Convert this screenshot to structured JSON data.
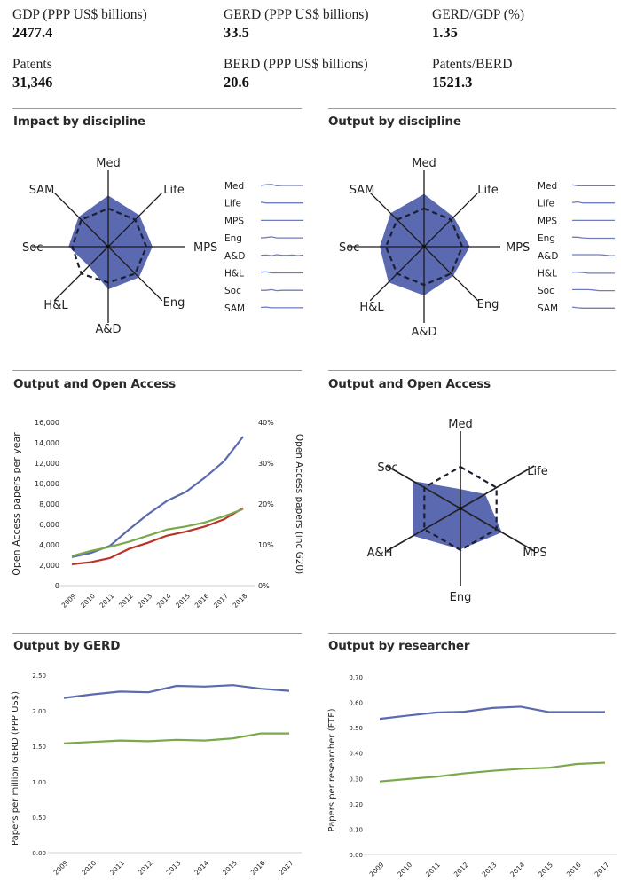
{
  "stats": [
    {
      "label": "GDP (PPP US$ billions)",
      "value": "2477.4"
    },
    {
      "label": "GERD (PPP US$ billions)",
      "value": "33.5"
    },
    {
      "label": "GERD/GDP (%)",
      "value": "1.35"
    },
    {
      "label": "Patents",
      "value": "31,346"
    },
    {
      "label": "BERD (PPP US$ billions)",
      "value": "20.6"
    },
    {
      "label": "Patents/BERD",
      "value": "1521.3"
    }
  ],
  "sections": {
    "impact": "Impact by discipline",
    "output": "Output by discipline",
    "oa_line": "Output and Open Access",
    "oa_radar": "Output and Open Access",
    "gerd": "Output by GERD",
    "researcher": "Output by researcher"
  },
  "colors": {
    "fill": "#5a69b0",
    "blue": "#5b6aae",
    "green": "#7aa84a",
    "red": "#b8332a",
    "axis": "#1a1a1a",
    "spark": "#6f7dbd"
  },
  "chart_data": [
    {
      "id": "impact",
      "type": "radar",
      "title": "Impact by discipline",
      "axes": [
        "Med",
        "Life",
        "MPS",
        "Eng",
        "A&D",
        "H&L",
        "Soc",
        "SAM"
      ],
      "series": [
        {
          "name": "country",
          "style": "filled",
          "values": [
            0.67,
            0.58,
            0.58,
            0.57,
            0.56,
            0.36,
            0.52,
            0.55
          ]
        },
        {
          "name": "reference",
          "style": "dashed",
          "values": [
            0.5,
            0.5,
            0.5,
            0.5,
            0.47,
            0.5,
            0.47,
            0.5
          ]
        }
      ],
      "sparklines": {
        "labels": [
          "Med",
          "Life",
          "MPS",
          "Eng",
          "A&D",
          "H&L",
          "Soc",
          "SAM"
        ],
        "shapes": [
          [
            0.5,
            0.3,
            0.2,
            0.6,
            0.5,
            0.5,
            0.5,
            0.5,
            0.5
          ],
          [
            0.3,
            0.5,
            0.5,
            0.5,
            0.5,
            0.5,
            0.5,
            0.5,
            0.5
          ],
          [
            0.5,
            0.5,
            0.5,
            0.5,
            0.5,
            0.5,
            0.5,
            0.5,
            0.5
          ],
          [
            0.5,
            0.4,
            0.2,
            0.5,
            0.5,
            0.5,
            0.5,
            0.5,
            0.5
          ],
          [
            0.5,
            0.4,
            0.6,
            0.3,
            0.5,
            0.5,
            0.4,
            0.6,
            0.4
          ],
          [
            0.3,
            0.2,
            0.5,
            0.5,
            0.5,
            0.5,
            0.5,
            0.5,
            0.5
          ],
          [
            0.5,
            0.5,
            0.3,
            0.6,
            0.5,
            0.5,
            0.5,
            0.5,
            0.5
          ],
          [
            0.4,
            0.3,
            0.5,
            0.5,
            0.5,
            0.5,
            0.5,
            0.5,
            0.5
          ]
        ]
      }
    },
    {
      "id": "output",
      "type": "radar",
      "title": "Output by discipline",
      "axes": [
        "Med",
        "Life",
        "MPS",
        "Eng",
        "A&D",
        "H&L",
        "Soc",
        "SAM"
      ],
      "series": [
        {
          "name": "country",
          "style": "filled",
          "values": [
            0.69,
            0.55,
            0.6,
            0.54,
            0.64,
            0.66,
            0.58,
            0.62
          ]
        },
        {
          "name": "reference",
          "style": "dashed",
          "values": [
            0.5,
            0.5,
            0.5,
            0.5,
            0.5,
            0.5,
            0.5,
            0.5
          ]
        }
      ],
      "sparklines": {
        "labels": [
          "Med",
          "Life",
          "MPS",
          "Eng",
          "A&D",
          "H&L",
          "Soc",
          "SAM"
        ],
        "shapes": [
          [
            0.3,
            0.6,
            0.6,
            0.6,
            0.6,
            0.6,
            0.6,
            0.6,
            0.6
          ],
          [
            0.4,
            0.2,
            0.5,
            0.5,
            0.5,
            0.5,
            0.5,
            0.5,
            0.5
          ],
          [
            0.5,
            0.5,
            0.5,
            0.5,
            0.5,
            0.5,
            0.5,
            0.5,
            0.5
          ],
          [
            0.3,
            0.3,
            0.5,
            0.6,
            0.6,
            0.6,
            0.6,
            0.6,
            0.6
          ],
          [
            0.3,
            0.3,
            0.3,
            0.3,
            0.3,
            0.3,
            0.4,
            0.6,
            0.6
          ],
          [
            0.3,
            0.3,
            0.4,
            0.6,
            0.6,
            0.6,
            0.6,
            0.6,
            0.6
          ],
          [
            0.3,
            0.3,
            0.3,
            0.3,
            0.4,
            0.6,
            0.6,
            0.6,
            0.6
          ],
          [
            0.3,
            0.5,
            0.6,
            0.6,
            0.6,
            0.6,
            0.6,
            0.6,
            0.6
          ]
        ]
      }
    },
    {
      "id": "oa_line",
      "type": "line",
      "title": "Output and Open Access",
      "x": [
        "2009",
        "2010",
        "2011",
        "2012",
        "2013",
        "2014",
        "2015",
        "2016",
        "2017",
        "2018"
      ],
      "ylabel": "Open Access papers per year",
      "y2label": "Open Access papers (inc G20)",
      "ylim": [
        0,
        16000
      ],
      "yticks": [
        "0",
        "2,000",
        "4,000",
        "6,000",
        "8,000",
        "10,000",
        "12,000",
        "14,000",
        "16,000"
      ],
      "y2lim": [
        0,
        40
      ],
      "y2ticks": [
        "0%",
        "10%",
        "20%",
        "30%",
        "40%"
      ],
      "series": [
        {
          "name": "blue",
          "axis": "left",
          "values": [
            2800,
            3200,
            3900,
            5500,
            7000,
            8300,
            9200,
            10600,
            12200,
            14600
          ]
        },
        {
          "name": "red",
          "axis": "left",
          "values": [
            2100,
            2300,
            2700,
            3600,
            4200,
            4900,
            5300,
            5800,
            6500,
            7600
          ]
        },
        {
          "name": "green",
          "axis": "left",
          "values": [
            2900,
            3400,
            3800,
            4300,
            4900,
            5500,
            5800,
            6200,
            6800,
            7500
          ]
        }
      ]
    },
    {
      "id": "oa_radar",
      "type": "radar",
      "title": "Output and Open Access",
      "axes": [
        "Med",
        "Life",
        "MPS",
        "Eng",
        "A&H",
        "Soc"
      ],
      "series": [
        {
          "name": "country",
          "style": "filled",
          "values": [
            0.25,
            0.37,
            0.62,
            0.53,
            0.71,
            0.71
          ]
        },
        {
          "name": "reference",
          "style": "dashed",
          "values": [
            0.54,
            0.54,
            0.54,
            0.54,
            0.54,
            0.54
          ]
        }
      ]
    },
    {
      "id": "gerd",
      "type": "line",
      "title": "Output by GERD",
      "x": [
        "2009",
        "2010",
        "2011",
        "2012",
        "2013",
        "2014",
        "2015",
        "2016",
        "2017"
      ],
      "ylabel": "Papers per million GERD (PPP US$)",
      "ylim": [
        0,
        2.5
      ],
      "yticks": [
        "0.00",
        "0.50",
        "1.00",
        "1.50",
        "2.00",
        "2.50"
      ],
      "series": [
        {
          "name": "blue",
          "values": [
            2.18,
            2.23,
            2.27,
            2.26,
            2.35,
            2.34,
            2.36,
            2.31,
            2.28
          ]
        },
        {
          "name": "green",
          "values": [
            1.54,
            1.56,
            1.58,
            1.57,
            1.59,
            1.58,
            1.61,
            1.68,
            1.68
          ]
        }
      ]
    },
    {
      "id": "researcher",
      "type": "line",
      "title": "Output by researcher",
      "x": [
        "2009",
        "2010",
        "2011",
        "2012",
        "2013",
        "2014",
        "2015",
        "2016",
        "2017"
      ],
      "ylabel": "Papers per researcher (FTE)",
      "ylim": [
        0,
        0.7
      ],
      "yticks": [
        "0.00",
        "0.10",
        "0.20",
        "0.30",
        "0.40",
        "0.50",
        "0.60",
        "0.70"
      ],
      "series": [
        {
          "name": "blue",
          "values": [
            0.535,
            0.548,
            0.56,
            0.563,
            0.578,
            0.583,
            0.562,
            0.562,
            0.562
          ]
        },
        {
          "name": "green",
          "values": [
            0.288,
            0.298,
            0.307,
            0.32,
            0.33,
            0.338,
            0.342,
            0.357,
            0.362
          ]
        }
      ]
    }
  ]
}
